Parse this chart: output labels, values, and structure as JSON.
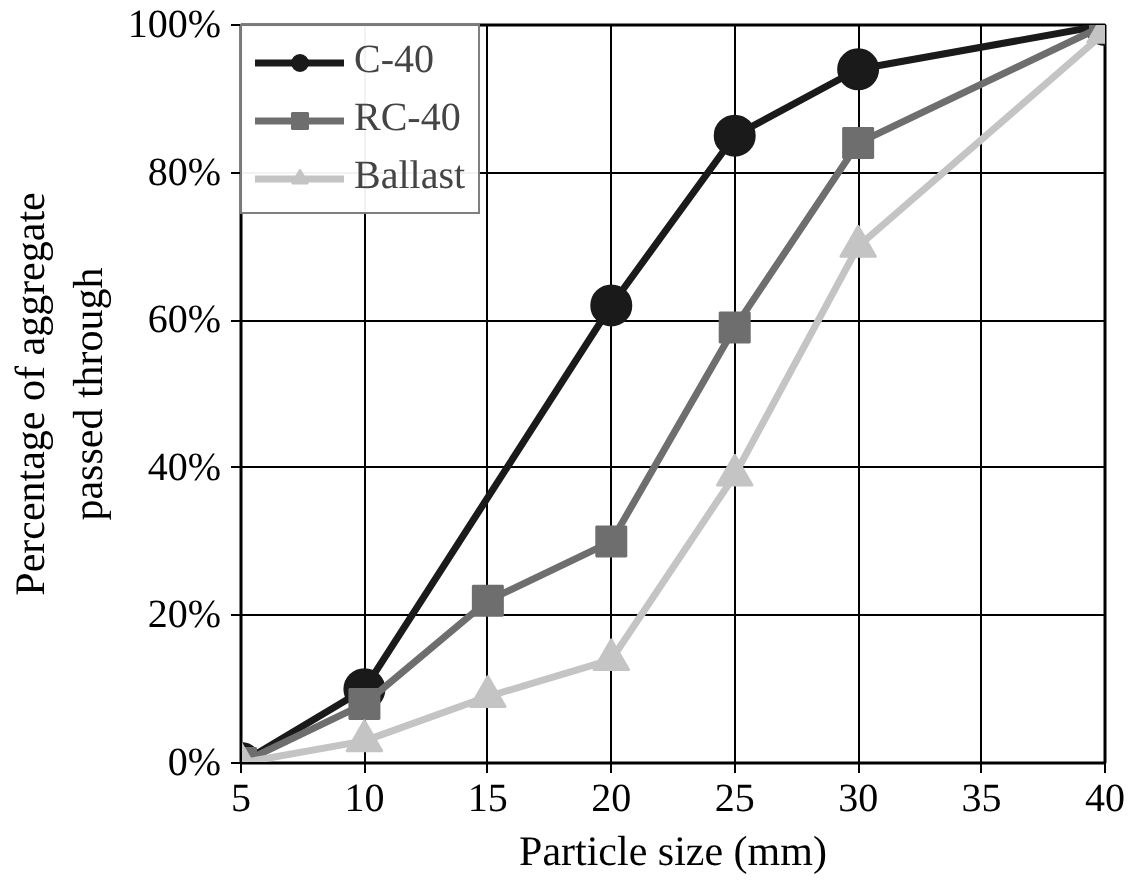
{
  "chart_data": {
    "type": "line",
    "xlabel": "Particle size (mm)",
    "ylabel": "Percentage of aggregate\npassed through",
    "xlim": [
      5,
      40
    ],
    "xticks": [
      5,
      10,
      15,
      20,
      25,
      30,
      35,
      40
    ],
    "ylim": [
      0,
      100
    ],
    "yticks": [
      {
        "value": 0,
        "label": "0%"
      },
      {
        "value": 20,
        "label": "20%"
      },
      {
        "value": 40,
        "label": "40%"
      },
      {
        "value": 60,
        "label": "60%"
      },
      {
        "value": 80,
        "label": "80%"
      },
      {
        "value": 100,
        "label": "100%"
      }
    ],
    "grid": true,
    "legend": "top left",
    "line_style": "solid",
    "series": [
      {
        "name": "C-40",
        "color": "#1a1a1a",
        "marker": "circle",
        "x": [
          5,
          10,
          20,
          25,
          30,
          40
        ],
        "values": [
          0,
          10,
          62,
          85,
          94,
          100
        ]
      },
      {
        "name": "RC-40",
        "color": "#6e6e6e",
        "marker": "square",
        "x": [
          5,
          10,
          15,
          20,
          25,
          30,
          40
        ],
        "values": [
          0,
          8,
          22,
          30,
          59,
          84,
          100
        ]
      },
      {
        "name": "Ballast",
        "color": "#c4c4c4",
        "marker": "triangle",
        "x": [
          5,
          10,
          15,
          20,
          25,
          30,
          40
        ],
        "values": [
          0,
          3,
          9,
          14,
          39,
          70,
          99
        ]
      }
    ]
  }
}
